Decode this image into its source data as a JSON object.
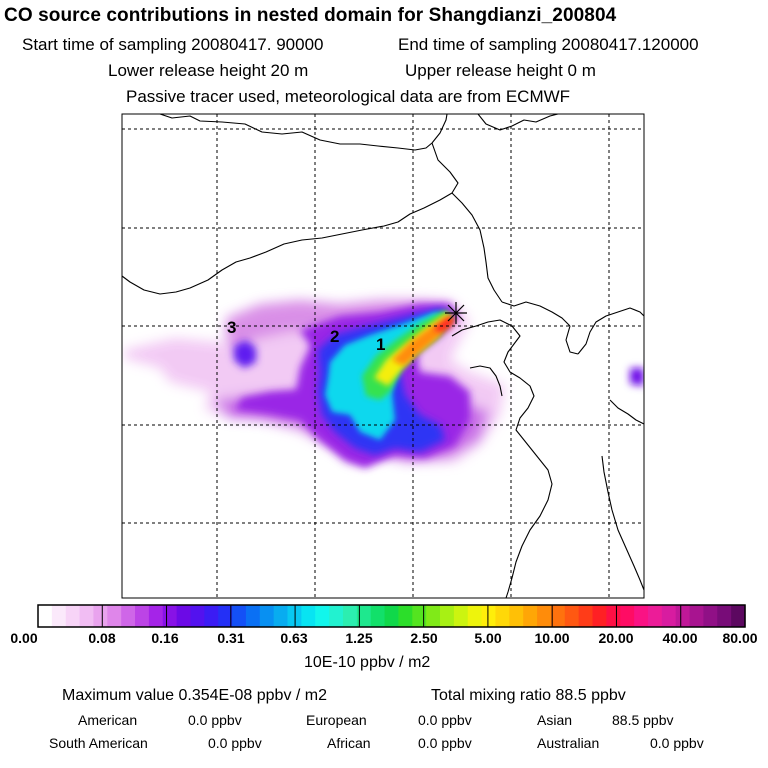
{
  "header": {
    "title": "CO  source contributions in nested domain for Shangdianzi_200804",
    "start": "Start time of sampling 20080417. 90000",
    "end": "End time of sampling 20080417.120000",
    "lower": "Lower release height   20 m",
    "upper": "Upper release height    0 m",
    "note": "Passive tracer used, meteorological data are from ECMWF"
  },
  "map": {
    "cluster_labels": [
      "1",
      "2",
      "3"
    ]
  },
  "colorbar": {
    "ticks": [
      "0.00",
      "0.08",
      "0.16",
      "0.31",
      "0.63",
      "1.25",
      "2.50",
      "5.00",
      "10.00",
      "20.00",
      "40.00",
      "80.00"
    ],
    "colors": [
      "#ffffff",
      "#fbe9fb",
      "#f7d4f7",
      "#f1bdf3",
      "#e9a3ee",
      "#df86ea",
      "#cf66e8",
      "#bc44e6",
      "#a524e8",
      "#8812e6",
      "#6c0ae6",
      "#5312ef",
      "#3b1cf4",
      "#2430f6",
      "#1450f6",
      "#0a70f4",
      "#0890f2",
      "#08acf0",
      "#08c8f2",
      "#08e4f2",
      "#12f6ec",
      "#22f2d0",
      "#2ceeb0",
      "#1ee88e",
      "#12e06a",
      "#10d84a",
      "#2cde2a",
      "#54e420",
      "#80ea18",
      "#a8f014",
      "#ccf410",
      "#eef40c",
      "#ffee0a",
      "#ffd808",
      "#ffc006",
      "#ffa606",
      "#ff8c0a",
      "#ff720e",
      "#ff5812",
      "#ff3c18",
      "#ff2024",
      "#ff1044",
      "#ff0c64",
      "#fa1284",
      "#ec1c98",
      "#d81ca0",
      "#c01898",
      "#a81490",
      "#901086",
      "#780c78",
      "#5c0860"
    ],
    "units": "10E-10 ppbv / m2"
  },
  "summary": {
    "max_label": "Maximum value  0.354E-08 ppbv / m2",
    "total_label": "Total mixing ratio       88.5 ppbv",
    "regions": [
      {
        "name": "American",
        "value": "0.0 ppbv"
      },
      {
        "name": "European",
        "value": "0.0 ppbv"
      },
      {
        "name": "Asian",
        "value": "88.5 ppbv"
      },
      {
        "name": "South American",
        "value": "0.0 ppbv"
      },
      {
        "name": "African",
        "value": "0.0 ppbv"
      },
      {
        "name": "Australian",
        "value": "0.0 ppbv"
      }
    ]
  }
}
